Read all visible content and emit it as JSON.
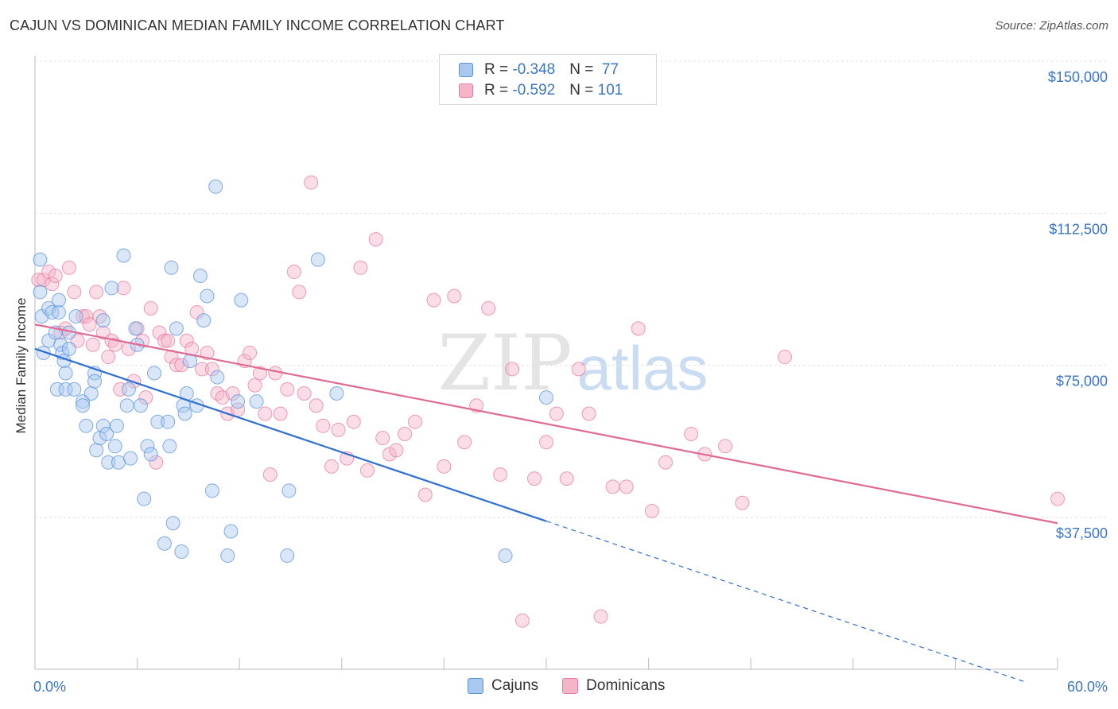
{
  "header": {
    "title": "CAJUN VS DOMINICAN MEDIAN FAMILY INCOME CORRELATION CHART",
    "source": "Source: ZipAtlas.com"
  },
  "watermark": {
    "zip": "ZIP",
    "atlas": "atlas"
  },
  "legend": {
    "rows": [
      {
        "r_label": "R = ",
        "r_value": "-0.348",
        "n_label": "N = ",
        "n_value": " 77",
        "color": "#a9c8ef"
      },
      {
        "r_label": "R = ",
        "r_value": "-0.592",
        "n_label": "N = ",
        "n_value": "101",
        "color": "#f5b4c8"
      }
    ]
  },
  "chart_data": {
    "type": "scatter",
    "ylabel": "Median Family Income",
    "xlim": [
      0,
      60
    ],
    "ylim": [
      0,
      155000
    ],
    "x_tick_labels": {
      "min": "0.0%",
      "max": "60.0%"
    },
    "y_ticks": [
      {
        "value": 150000,
        "label": "$150,000"
      },
      {
        "value": 112500,
        "label": "$112,500"
      },
      {
        "value": 75000,
        "label": "$75,000"
      },
      {
        "value": 37500,
        "label": "$37,500"
      }
    ],
    "grid": true,
    "legend_position": "bottom-center",
    "series": [
      {
        "name": "Cajuns",
        "color": "#5b93db",
        "fill": "#a9c8ef",
        "line_color": "#2f6fd0",
        "trend": {
          "x0": 0,
          "y0": 83000,
          "x1": 30,
          "y1": 40500,
          "dash_to_x": 58,
          "dash_to_y": 1000
        },
        "points": [
          [
            0.3,
            105
          ],
          [
            0.3,
            97
          ],
          [
            0.4,
            91
          ],
          [
            0.5,
            82
          ],
          [
            0.8,
            93
          ],
          [
            0.8,
            85
          ],
          [
            1.0,
            92
          ],
          [
            1.2,
            87
          ],
          [
            1.3,
            73
          ],
          [
            1.4,
            92
          ],
          [
            1.4,
            95
          ],
          [
            1.5,
            84
          ],
          [
            1.6,
            82
          ],
          [
            1.7,
            80
          ],
          [
            1.8,
            77
          ],
          [
            1.8,
            73
          ],
          [
            2.0,
            83
          ],
          [
            2.0,
            87
          ],
          [
            2.3,
            73
          ],
          [
            2.4,
            91
          ],
          [
            2.8,
            70
          ],
          [
            2.8,
            69
          ],
          [
            3.0,
            64
          ],
          [
            3.3,
            72
          ],
          [
            3.5,
            77
          ],
          [
            3.5,
            75
          ],
          [
            3.6,
            58
          ],
          [
            3.8,
            61
          ],
          [
            4.0,
            90
          ],
          [
            4.0,
            64
          ],
          [
            4.2,
            62
          ],
          [
            4.3,
            55
          ],
          [
            4.5,
            98
          ],
          [
            4.7,
            59
          ],
          [
            4.8,
            64
          ],
          [
            4.9,
            55
          ],
          [
            5.2,
            106
          ],
          [
            5.4,
            69
          ],
          [
            5.5,
            73
          ],
          [
            5.6,
            56
          ],
          [
            5.9,
            88
          ],
          [
            6.0,
            84
          ],
          [
            6.2,
            69
          ],
          [
            6.4,
            46
          ],
          [
            6.6,
            59
          ],
          [
            6.8,
            57
          ],
          [
            7.0,
            77
          ],
          [
            7.2,
            65
          ],
          [
            7.6,
            35
          ],
          [
            7.8,
            65
          ],
          [
            7.9,
            59
          ],
          [
            8.0,
            103
          ],
          [
            8.1,
            40
          ],
          [
            8.3,
            88
          ],
          [
            8.6,
            33
          ],
          [
            8.7,
            69
          ],
          [
            8.8,
            67
          ],
          [
            8.9,
            72
          ],
          [
            9.1,
            80
          ],
          [
            9.5,
            69
          ],
          [
            9.7,
            101
          ],
          [
            9.9,
            90
          ],
          [
            10.1,
            96
          ],
          [
            10.4,
            48
          ],
          [
            10.6,
            123
          ],
          [
            10.7,
            76
          ],
          [
            11.3,
            32
          ],
          [
            11.5,
            38
          ],
          [
            11.9,
            70
          ],
          [
            12.1,
            95
          ],
          [
            13.0,
            70
          ],
          [
            14.8,
            32
          ],
          [
            14.9,
            48
          ],
          [
            16.6,
            105
          ],
          [
            17.7,
            72
          ],
          [
            27.6,
            32
          ],
          [
            30.0,
            71
          ]
        ]
      },
      {
        "name": "Dominicans",
        "color": "#e87ca0",
        "fill": "#f5b4c8",
        "line_color": "#e06a93",
        "trend": {
          "x0": 0,
          "y0": 89000,
          "x1": 60,
          "y1": 40000
        },
        "points": [
          [
            0.2,
            100
          ],
          [
            0.5,
            100
          ],
          [
            0.8,
            102
          ],
          [
            1.0,
            99
          ],
          [
            1.2,
            101
          ],
          [
            1.5,
            87
          ],
          [
            1.8,
            88
          ],
          [
            2.0,
            103
          ],
          [
            2.3,
            97
          ],
          [
            2.5,
            85
          ],
          [
            2.8,
            91
          ],
          [
            3.0,
            91
          ],
          [
            3.2,
            89
          ],
          [
            3.4,
            84
          ],
          [
            3.6,
            97
          ],
          [
            3.8,
            91
          ],
          [
            4.0,
            87
          ],
          [
            4.3,
            81
          ],
          [
            4.5,
            85
          ],
          [
            4.7,
            84
          ],
          [
            5.0,
            73
          ],
          [
            5.2,
            98
          ],
          [
            5.5,
            83
          ],
          [
            5.8,
            75
          ],
          [
            6.0,
            88
          ],
          [
            6.3,
            85
          ],
          [
            6.5,
            71
          ],
          [
            6.8,
            93
          ],
          [
            7.1,
            55
          ],
          [
            7.3,
            87
          ],
          [
            7.6,
            85
          ],
          [
            7.8,
            85
          ],
          [
            8.0,
            81
          ],
          [
            8.3,
            79
          ],
          [
            8.6,
            79
          ],
          [
            8.9,
            85
          ],
          [
            9.2,
            83
          ],
          [
            9.5,
            92
          ],
          [
            9.8,
            78
          ],
          [
            10.1,
            82
          ],
          [
            10.4,
            78
          ],
          [
            10.7,
            72
          ],
          [
            11.0,
            71
          ],
          [
            11.3,
            67
          ],
          [
            11.6,
            72
          ],
          [
            11.9,
            68
          ],
          [
            12.3,
            80
          ],
          [
            12.6,
            82
          ],
          [
            12.9,
            74
          ],
          [
            13.2,
            77
          ],
          [
            13.5,
            67
          ],
          [
            13.8,
            52
          ],
          [
            14.1,
            77
          ],
          [
            14.4,
            67
          ],
          [
            14.8,
            73
          ],
          [
            15.2,
            102
          ],
          [
            15.5,
            97
          ],
          [
            15.8,
            72
          ],
          [
            16.2,
            124
          ],
          [
            16.5,
            69
          ],
          [
            16.9,
            64
          ],
          [
            17.4,
            54
          ],
          [
            17.8,
            63
          ],
          [
            18.3,
            56
          ],
          [
            18.7,
            65
          ],
          [
            19.1,
            103
          ],
          [
            19.5,
            53
          ],
          [
            20.0,
            110
          ],
          [
            20.4,
            61
          ],
          [
            20.8,
            57
          ],
          [
            21.2,
            58
          ],
          [
            21.7,
            62
          ],
          [
            22.3,
            65
          ],
          [
            22.9,
            47
          ],
          [
            23.4,
            95
          ],
          [
            24.0,
            54
          ],
          [
            24.6,
            96
          ],
          [
            25.2,
            60
          ],
          [
            25.9,
            69
          ],
          [
            26.6,
            93
          ],
          [
            27.3,
            52
          ],
          [
            28.0,
            78
          ],
          [
            28.6,
            16
          ],
          [
            29.3,
            51
          ],
          [
            30.0,
            60
          ],
          [
            30.6,
            67
          ],
          [
            31.2,
            51
          ],
          [
            31.9,
            78
          ],
          [
            32.5,
            67
          ],
          [
            33.2,
            17
          ],
          [
            33.9,
            49
          ],
          [
            34.7,
            49
          ],
          [
            35.4,
            88
          ],
          [
            36.2,
            43
          ],
          [
            37.0,
            55
          ],
          [
            38.5,
            62
          ],
          [
            39.3,
            57
          ],
          [
            40.5,
            59
          ],
          [
            41.5,
            45
          ],
          [
            44.0,
            81
          ],
          [
            60.0,
            46
          ]
        ]
      }
    ]
  }
}
